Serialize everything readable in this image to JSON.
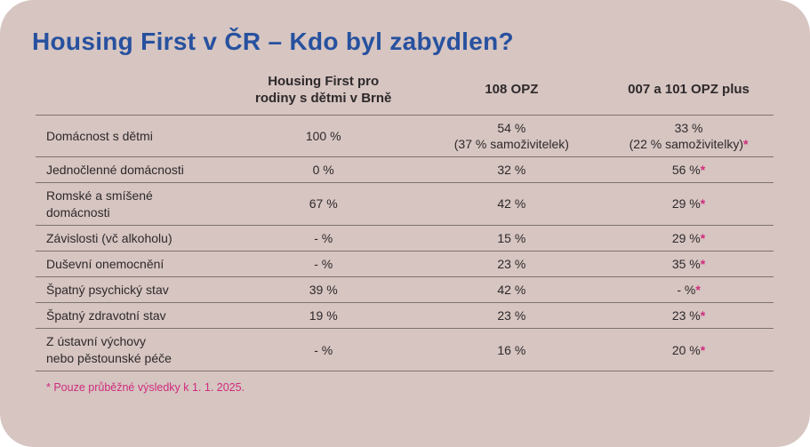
{
  "title": "Housing First v ČR – Kdo byl zabydlen?",
  "colors": {
    "card_background": "#d6c5c1",
    "title_blue": "#27519f",
    "text_ink": "#2e292b",
    "accent_pink": "#cf2b7d",
    "divider_line": "#7e7370"
  },
  "table": {
    "columns": {
      "c1": "Housing First pro\nrodiny s dětmi v Brně",
      "c2": "108 OPZ",
      "c3": "007 a 101 OPZ plus"
    },
    "rows": [
      {
        "label": "Domácnost s dětmi",
        "c1": {
          "main": "100 %"
        },
        "c2": {
          "main": "54 %",
          "sub": "(37 % samoživitelek)"
        },
        "c3": {
          "main": "33 %",
          "sub": "(22 % samoživitelky)",
          "sub_ast": "*"
        }
      },
      {
        "label": "Jednočlenné domácnosti",
        "c1": {
          "main": "0 %"
        },
        "c2": {
          "main": "32 %"
        },
        "c3": {
          "main": "56 %",
          "ast": "*"
        }
      },
      {
        "label": "Romské a smíšené\ndomácnosti",
        "c1": {
          "main": "67 %"
        },
        "c2": {
          "main": "42 %"
        },
        "c3": {
          "main": "29 %",
          "ast": "*"
        }
      },
      {
        "label": "Závislosti (vč alkoholu)",
        "c1": {
          "main": "- %"
        },
        "c2": {
          "main": "15 %"
        },
        "c3": {
          "main": "29 %",
          "ast": "*"
        }
      },
      {
        "label": "Duševní onemocnění",
        "c1": {
          "main": "- %"
        },
        "c2": {
          "main": "23 %"
        },
        "c3": {
          "main": "35 %",
          "ast": "*"
        }
      },
      {
        "label": "Špatný psychický stav",
        "c1": {
          "main": "39 %"
        },
        "c2": {
          "main": "42 %"
        },
        "c3": {
          "main": "- %",
          "ast": "*"
        }
      },
      {
        "label": "Špatný zdravotní stav",
        "c1": {
          "main": "19 %"
        },
        "c2": {
          "main": "23 %"
        },
        "c3": {
          "main": "23 %",
          "ast": "*"
        }
      },
      {
        "label": "Z ústavní výchovy\nnebo pěstounské péče",
        "c1": {
          "main": "- %"
        },
        "c2": {
          "main": "16 %"
        },
        "c3": {
          "main": "20 %",
          "ast": "*"
        }
      }
    ]
  },
  "footnote": "* Pouze průběžné výsledky k 1. 1. 2025.",
  "chart_data": {
    "type": "table",
    "title": "Housing First v ČR – Kdo byl zabydlen?",
    "columns": [
      "Housing First pro rodiny s dětmi v Brně",
      "108 OPZ",
      "007 a 101 OPZ plus"
    ],
    "rows": [
      {
        "category": "Domácnost s dětmi",
        "values": [
          "100 %",
          "54 % (37 % samoživitelek)",
          "33 % (22 % samoživitelky)*"
        ]
      },
      {
        "category": "Jednočlenné domácnosti",
        "values": [
          "0 %",
          "32 %",
          "56 %*"
        ]
      },
      {
        "category": "Romské a smíšené domácnosti",
        "values": [
          "67 %",
          "42 %",
          "29 %*"
        ]
      },
      {
        "category": "Závislosti (vč alkoholu)",
        "values": [
          "- %",
          "15 %",
          "29 %*"
        ]
      },
      {
        "category": "Duševní onemocnění",
        "values": [
          "- %",
          "23 %",
          "35 %*"
        ]
      },
      {
        "category": "Špatný psychický stav",
        "values": [
          "39 %",
          "42 %",
          "- %*"
        ]
      },
      {
        "category": "Špatný zdravotní stav",
        "values": [
          "19 %",
          "23 %",
          "23 %*"
        ]
      },
      {
        "category": "Z ústavní výchovy nebo pěstounské péče",
        "values": [
          "- %",
          "16 %",
          "20 %*"
        ]
      }
    ],
    "footnote": "* Pouze průběžné výsledky k 1. 1. 2025."
  }
}
